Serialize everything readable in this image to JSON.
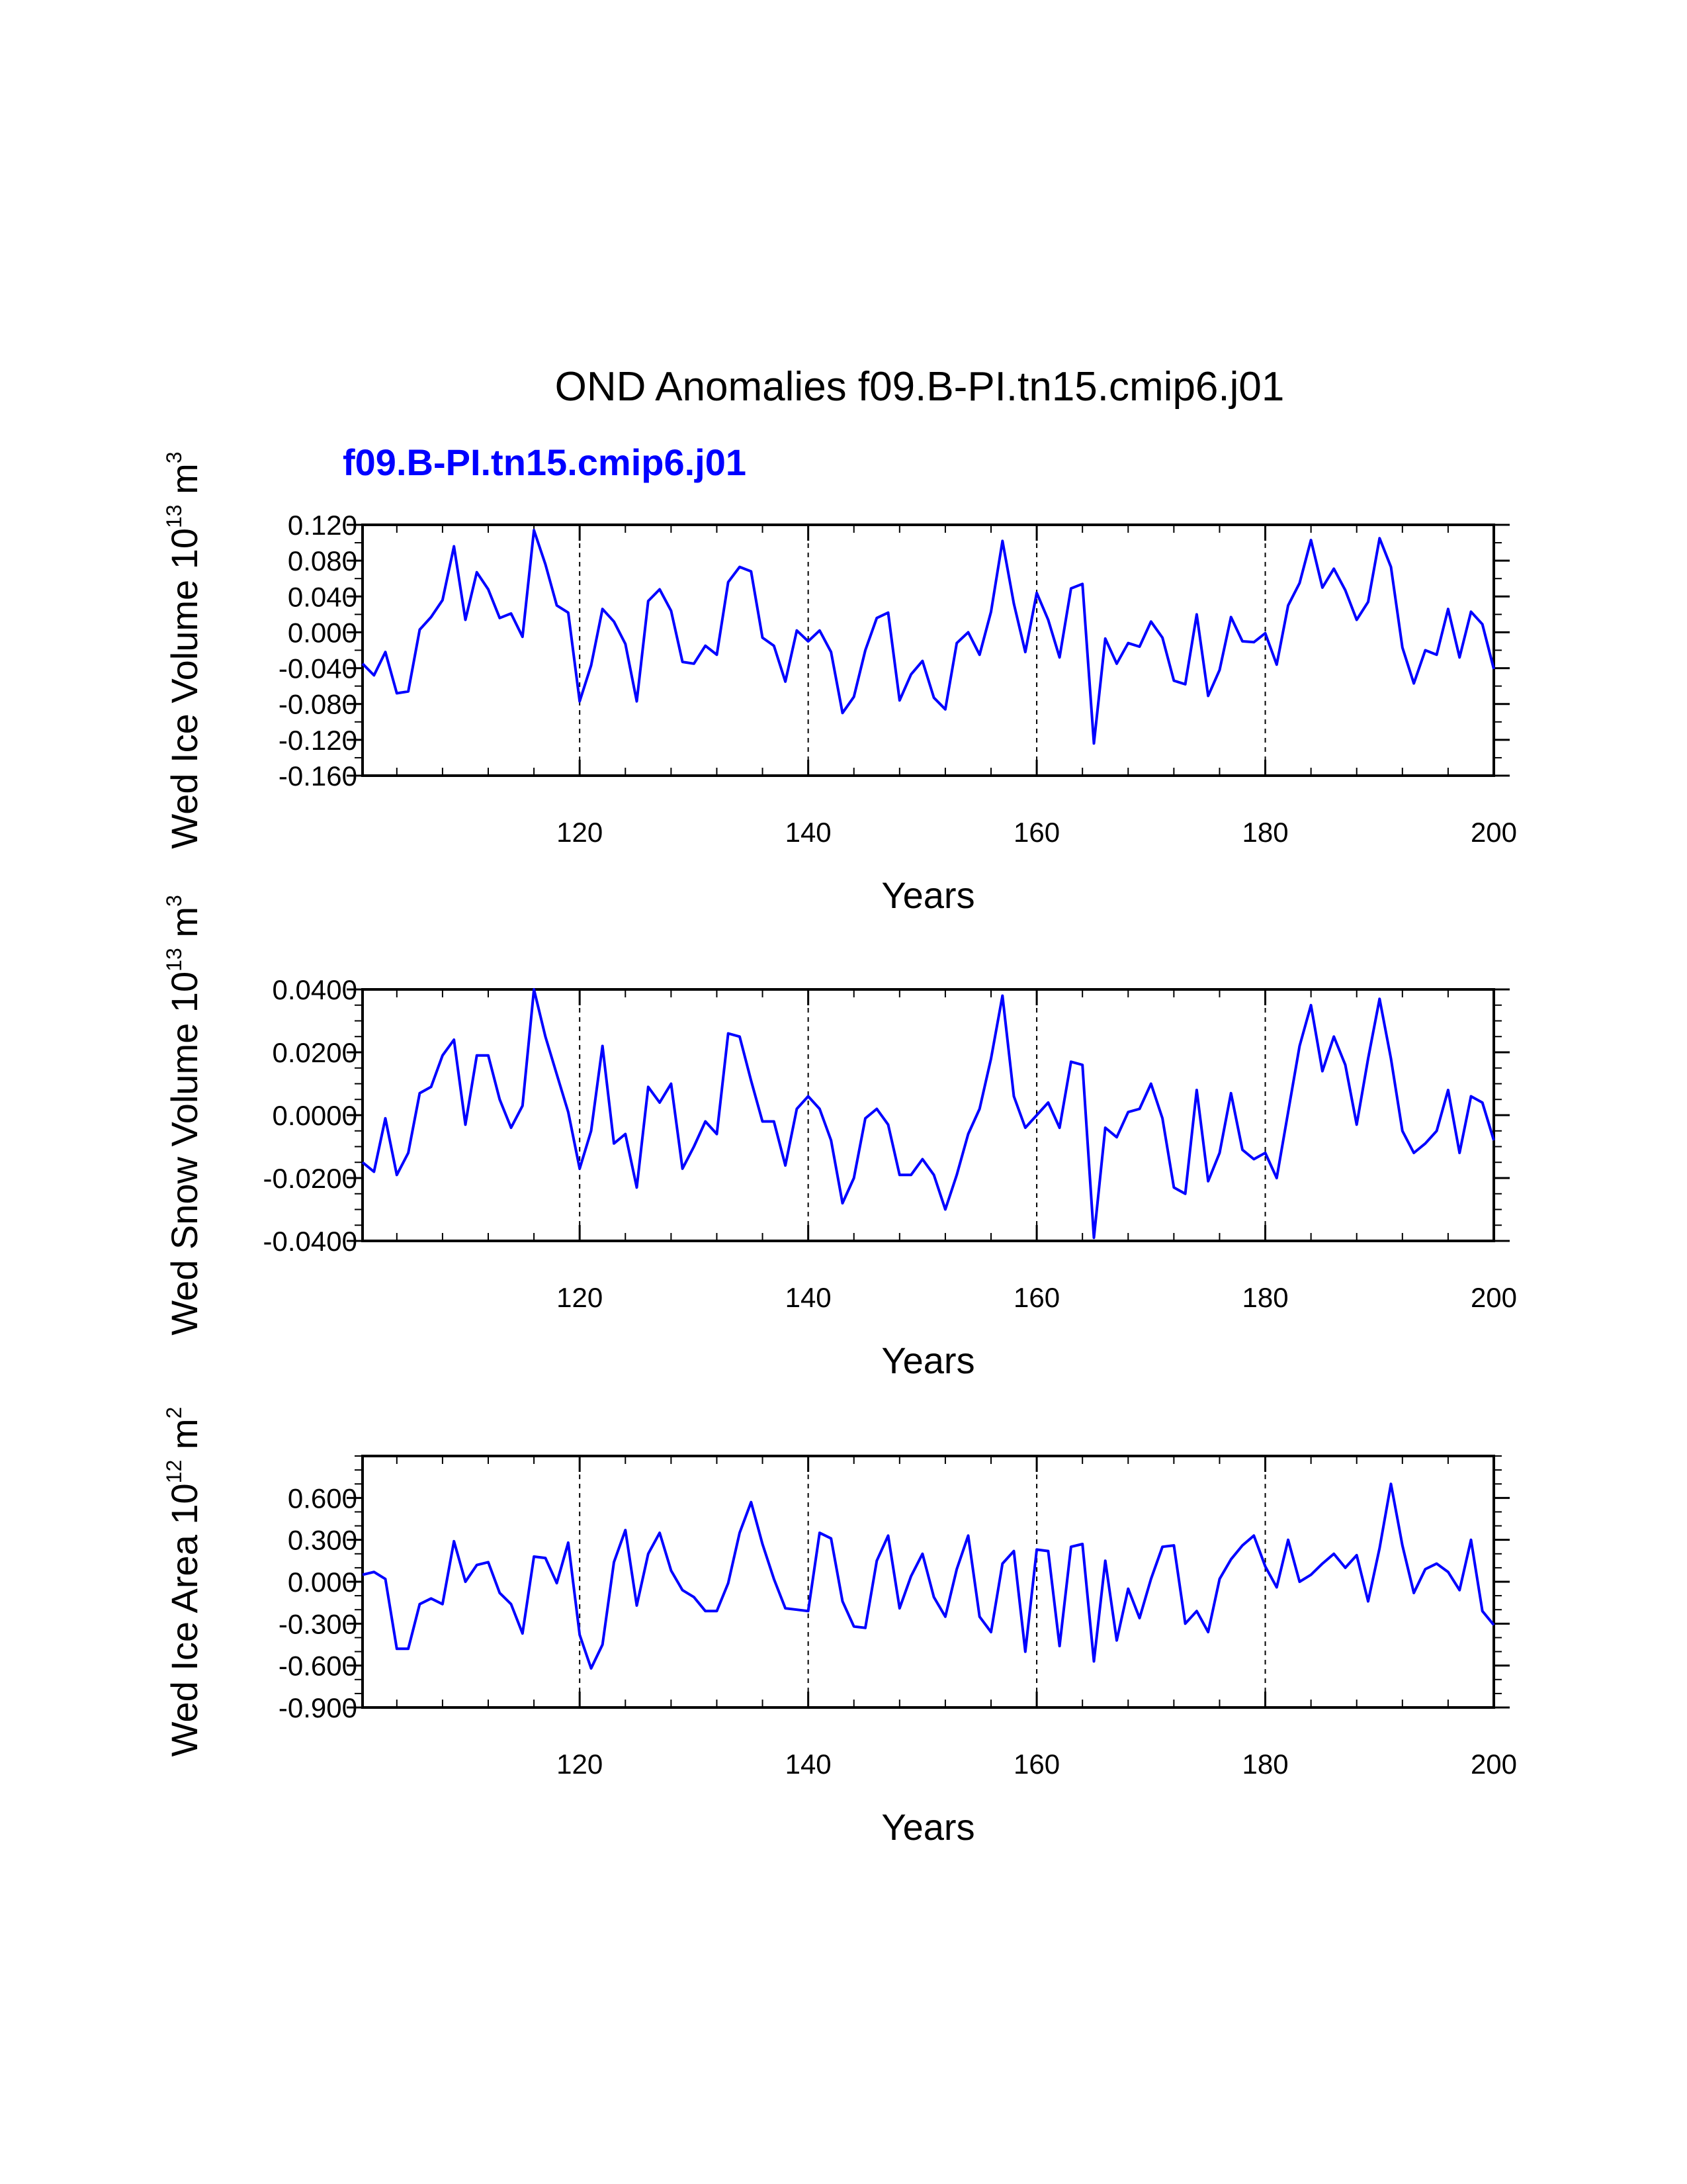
{
  "title": "OND Anomalies f09.B-PI.tn15.cmip6.j01",
  "subtitle": "f09.B-PI.tn15.cmip6.j01",
  "line_color": "#0000ff",
  "chart_data": [
    {
      "type": "line",
      "ylabel": "Wed Ice Volume 10^13 m^3",
      "ylabel_parts": {
        "base": "Wed Ice Volume 10",
        "exp": "13",
        "unit": " m",
        "unit_exp": "3"
      },
      "xlabel": "Years",
      "xlim": [
        101,
        200
      ],
      "ylim": [
        -0.16,
        0.12
      ],
      "xticks": [
        120,
        140,
        160,
        180,
        200
      ],
      "xtick_labels": [
        "120",
        "140",
        "160",
        "180",
        "200"
      ],
      "yticks": [
        0.12,
        0.08,
        0.04,
        0.0,
        -0.04,
        -0.08,
        -0.12,
        -0.16
      ],
      "ytick_labels": [
        "0.120",
        "0.080",
        "0.040",
        "0.000",
        "-0.040",
        "-0.080",
        "-0.120",
        "-0.160"
      ],
      "ytick_minor_step": 0.02,
      "gridlines_x": [
        120,
        140,
        160,
        180
      ],
      "x_start": 101,
      "values": [
        -0.035,
        -0.048,
        -0.022,
        -0.068,
        -0.066,
        0.003,
        0.017,
        0.036,
        0.096,
        0.014,
        0.067,
        0.048,
        0.016,
        0.021,
        -0.005,
        0.114,
        0.076,
        0.03,
        0.022,
        -0.077,
        -0.037,
        0.026,
        0.012,
        -0.013,
        -0.077,
        0.035,
        0.048,
        0.024,
        -0.033,
        -0.035,
        -0.015,
        -0.025,
        0.056,
        0.073,
        0.068,
        -0.006,
        -0.015,
        -0.055,
        0.002,
        -0.01,
        0.002,
        -0.022,
        -0.09,
        -0.072,
        -0.02,
        0.016,
        0.022,
        -0.076,
        -0.047,
        -0.032,
        -0.073,
        -0.086,
        -0.012,
        0.0,
        -0.025,
        0.023,
        0.102,
        0.032,
        -0.022,
        0.044,
        0.014,
        -0.028,
        0.049,
        0.054,
        -0.124,
        -0.007,
        -0.035,
        -0.012,
        -0.016,
        0.012,
        -0.006,
        -0.054,
        -0.058,
        0.02,
        -0.071,
        -0.042,
        0.017,
        -0.01,
        -0.011,
        -0.001,
        -0.036,
        0.03,
        0.055,
        0.103,
        0.05,
        0.071,
        0.047,
        0.014,
        0.034,
        0.105,
        0.073,
        -0.017,
        -0.057,
        -0.02,
        -0.025,
        0.026,
        -0.028,
        0.023,
        0.009,
        -0.041
      ]
    },
    {
      "type": "line",
      "ylabel": "Wed Snow Volume 10^13 m^3",
      "ylabel_parts": {
        "base": "Wed Snow Volume 10",
        "exp": "13",
        "unit": " m",
        "unit_exp": "3"
      },
      "xlabel": "Years",
      "xlim": [
        101,
        200
      ],
      "ylim": [
        -0.04,
        0.04
      ],
      "xticks": [
        120,
        140,
        160,
        180,
        200
      ],
      "xtick_labels": [
        "120",
        "140",
        "160",
        "180",
        "200"
      ],
      "yticks": [
        0.04,
        0.02,
        0.0,
        -0.02,
        -0.04
      ],
      "ytick_labels": [
        "0.0400",
        "0.0200",
        "0.0000",
        "-0.0200",
        "-0.0400"
      ],
      "ytick_minor_step": 0.005,
      "gridlines_x": [
        120,
        140,
        160,
        180
      ],
      "x_start": 101,
      "values": [
        -0.015,
        -0.018,
        -0.001,
        -0.019,
        -0.012,
        0.007,
        0.009,
        0.019,
        0.024,
        -0.003,
        0.019,
        0.019,
        0.005,
        -0.004,
        0.003,
        0.04,
        0.025,
        0.013,
        0.001,
        -0.017,
        -0.005,
        0.022,
        -0.009,
        -0.006,
        -0.023,
        0.009,
        0.004,
        0.01,
        -0.017,
        -0.01,
        -0.002,
        -0.006,
        0.026,
        0.025,
        0.011,
        -0.002,
        -0.002,
        -0.016,
        0.002,
        0.006,
        0.002,
        -0.008,
        -0.028,
        -0.02,
        -0.001,
        0.002,
        -0.003,
        -0.019,
        -0.019,
        -0.014,
        -0.019,
        -0.03,
        -0.019,
        -0.006,
        0.002,
        0.018,
        0.038,
        0.006,
        -0.004,
        0.0,
        0.004,
        -0.004,
        0.017,
        0.016,
        -0.039,
        -0.004,
        -0.007,
        0.001,
        0.002,
        0.01,
        -0.001,
        -0.023,
        -0.025,
        0.008,
        -0.021,
        -0.012,
        0.007,
        -0.011,
        -0.014,
        -0.012,
        -0.02,
        0.001,
        0.022,
        0.035,
        0.014,
        0.025,
        0.016,
        -0.003,
        0.018,
        0.037,
        0.018,
        -0.005,
        -0.012,
        -0.009,
        -0.005,
        0.008,
        -0.012,
        0.006,
        0.004,
        -0.008
      ]
    },
    {
      "type": "line",
      "ylabel": "Wed Ice Area 10^12 m^2",
      "ylabel_parts": {
        "base": "Wed Ice Area 10",
        "exp": "12",
        "unit": " m",
        "unit_exp": "2"
      },
      "xlabel": "Years",
      "xlim": [
        101,
        200
      ],
      "ylim": [
        -0.9,
        0.9
      ],
      "xticks": [
        120,
        140,
        160,
        180,
        200
      ],
      "xtick_labels": [
        "120",
        "140",
        "160",
        "180",
        "200"
      ],
      "yticks": [
        0.6,
        0.3,
        0.0,
        -0.3,
        -0.6,
        -0.9
      ],
      "ytick_labels": [
        "0.600",
        "0.300",
        "0.000",
        "-0.300",
        "-0.600",
        "-0.900"
      ],
      "ytick_minor_step": 0.1,
      "gridlines_x": [
        120,
        140,
        160,
        180
      ],
      "x_start": 101,
      "values": [
        0.05,
        0.07,
        0.02,
        -0.48,
        -0.48,
        -0.16,
        -0.12,
        -0.16,
        0.29,
        0.0,
        0.12,
        0.14,
        -0.08,
        -0.16,
        -0.37,
        0.18,
        0.17,
        -0.01,
        0.28,
        -0.38,
        -0.62,
        -0.45,
        0.14,
        0.37,
        -0.17,
        0.2,
        0.35,
        0.08,
        -0.06,
        -0.11,
        -0.21,
        -0.21,
        -0.01,
        0.35,
        0.57,
        0.27,
        0.02,
        -0.19,
        -0.2,
        -0.21,
        0.35,
        0.31,
        -0.14,
        -0.32,
        -0.33,
        0.15,
        0.33,
        -0.19,
        0.04,
        0.2,
        -0.11,
        -0.25,
        0.09,
        0.33,
        -0.25,
        -0.36,
        0.13,
        0.22,
        -0.5,
        0.23,
        0.22,
        -0.46,
        0.25,
        0.27,
        -0.57,
        0.15,
        -0.42,
        -0.05,
        -0.26,
        0.02,
        0.25,
        0.26,
        -0.3,
        -0.21,
        -0.36,
        0.02,
        0.16,
        0.26,
        0.33,
        0.11,
        -0.04,
        0.3,
        0.0,
        0.05,
        0.13,
        0.2,
        0.1,
        0.19,
        -0.14,
        0.24,
        0.7,
        0.26,
        -0.08,
        0.09,
        0.13,
        0.07,
        -0.06,
        0.3,
        -0.21,
        -0.31
      ]
    }
  ]
}
